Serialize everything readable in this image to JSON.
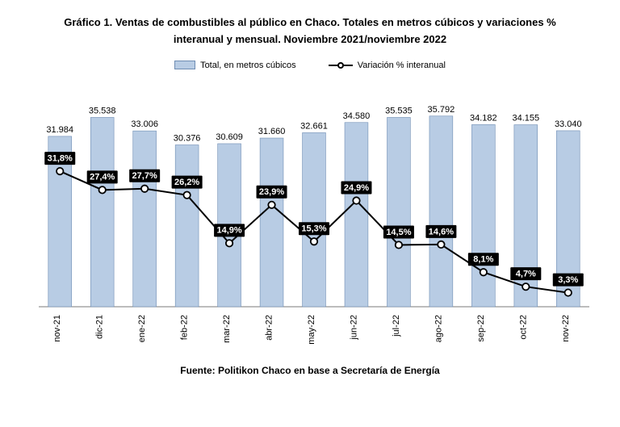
{
  "title_line1": "Gráfico 1. Ventas de combustibles al público en Chaco. Totales en metros cúbicos y variaciones %",
  "title_line2": "interanual y mensual. Noviembre 2021/noviembre 2022",
  "legend": {
    "bar_label": "Total, en metros cúbicos",
    "line_label": "Variación % interanual"
  },
  "footer": "Fuente: Politikon Chaco en base a Secretaría de Energía",
  "chart": {
    "type": "bar+line",
    "categories": [
      "nov-21",
      "dic-21",
      "ene-22",
      "feb-22",
      "mar-22",
      "abr-22",
      "may-22",
      "jun-22",
      "jul-22",
      "ago-22",
      "sep-22",
      "oct-22",
      "nov-22"
    ],
    "bar_values": [
      31984,
      35538,
      33006,
      30376,
      30609,
      31660,
      32661,
      34580,
      35535,
      35792,
      34182,
      34155,
      33040
    ],
    "bar_value_labels": [
      "31.984",
      "35.538",
      "33.006",
      "30.376",
      "30.609",
      "31.660",
      "32.661",
      "34.580",
      "35.535",
      "35.792",
      "34.182",
      "34.155",
      "33.040"
    ],
    "line_values": [
      31.8,
      27.4,
      27.7,
      26.2,
      14.9,
      23.9,
      15.3,
      24.9,
      14.5,
      14.6,
      8.1,
      4.7,
      3.3
    ],
    "line_value_labels": [
      "31,8%",
      "27,4%",
      "27,7%",
      "26,2%",
      "14,9%",
      "23,9%",
      "15,3%",
      "24,9%",
      "14,5%",
      "14,6%",
      "8,1%",
      "4,7%",
      "3,3%"
    ],
    "bar_color": "#b8cce4",
    "bar_border_color": "#6f8db3",
    "line_color": "#000000",
    "marker_fill": "#ffffff",
    "marker_stroke": "#000000",
    "background_color": "#ffffff",
    "y_bar_max": 40000,
    "y_bar_min": 0,
    "y_line_max": 50,
    "y_line_min": 0,
    "bar_width_ratio": 0.55,
    "bar_label_fontsize": 11,
    "pct_label_fontsize": 11,
    "xaxis_label_fontsize": 11,
    "xaxis_label_rotation": -90,
    "pct_box_color": "#000000",
    "pct_text_color": "#ffffff"
  }
}
